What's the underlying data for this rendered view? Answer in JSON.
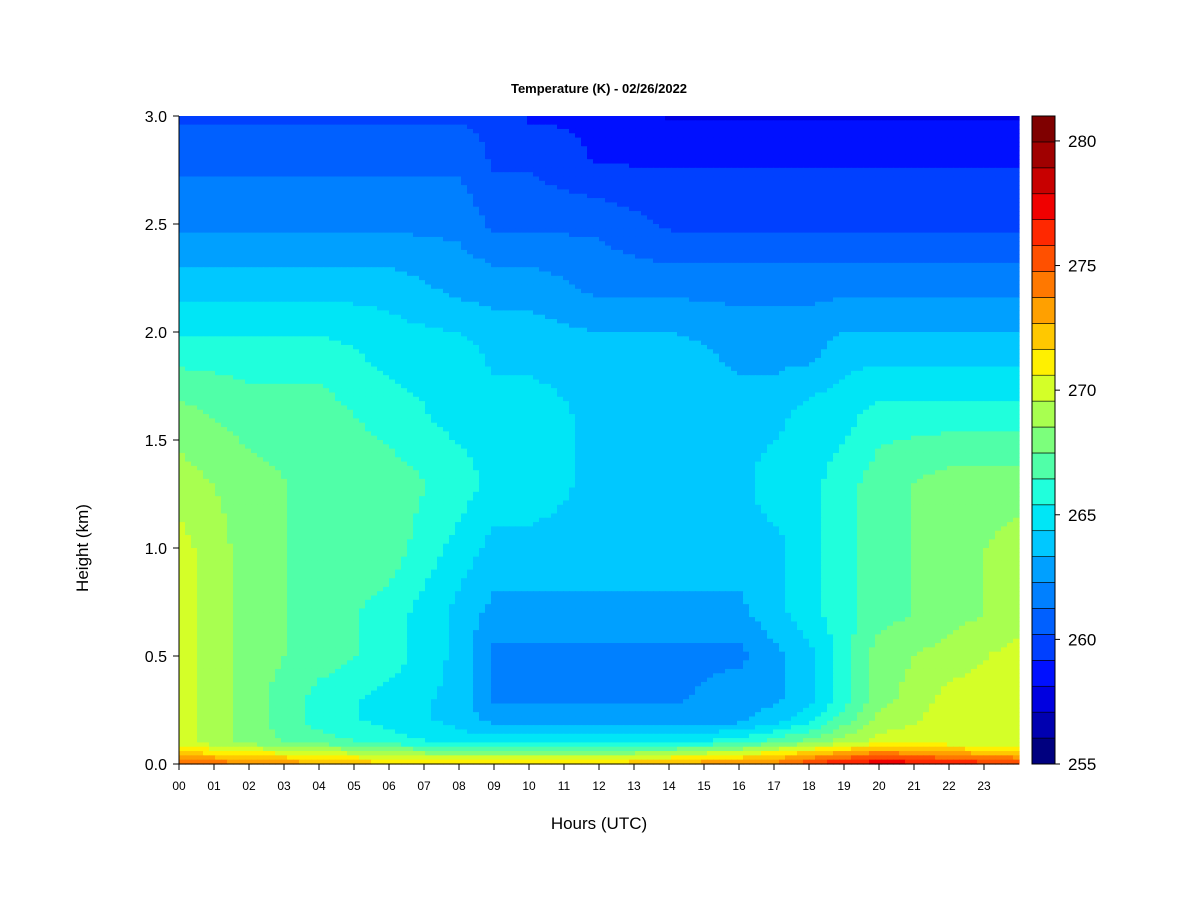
{
  "chart_data": {
    "type": "heatmap",
    "title": "Temperature (K) - 02/26/2022",
    "xlabel": "Hours (UTC)",
    "ylabel": "Height (km)",
    "xlim": [
      0,
      24
    ],
    "ylim": [
      0,
      3.0
    ],
    "x_ticks": [
      "00",
      "01",
      "02",
      "03",
      "04",
      "05",
      "06",
      "07",
      "08",
      "09",
      "10",
      "11",
      "12",
      "13",
      "14",
      "15",
      "16",
      "17",
      "18",
      "19",
      "20",
      "21",
      "22",
      "23"
    ],
    "y_ticks": [
      "0.0",
      "0.5",
      "1.0",
      "1.5",
      "2.0",
      "2.5",
      "3.0"
    ],
    "colorbar": {
      "min": 255,
      "max": 281,
      "ticks": [
        "255",
        "260",
        "265",
        "270",
        "275",
        "280"
      ],
      "colors": [
        "#00007F",
        "#0000B0",
        "#0000E0",
        "#0010FF",
        "#0040FF",
        "#0060FF",
        "#0080FF",
        "#00A0FF",
        "#00C8FF",
        "#00E6F6",
        "#20FFDC",
        "#50FFA8",
        "#7CFF7C",
        "#A8FF50",
        "#D4FF28",
        "#FFF000",
        "#FFC800",
        "#FFA000",
        "#FF7800",
        "#FF5000",
        "#FF2800",
        "#F00000",
        "#C80000",
        "#A00000",
        "#7F0000"
      ]
    },
    "x": [
      0,
      2,
      4,
      6,
      8,
      9,
      10,
      12,
      14,
      16,
      17,
      18,
      19,
      20,
      22,
      24
    ],
    "y": [
      0.0,
      0.05,
      0.1,
      0.2,
      0.3,
      0.5,
      0.7,
      1.0,
      1.3,
      1.6,
      1.9,
      2.2,
      2.5,
      2.8,
      3.0
    ],
    "z": [
      [
        275,
        274,
        273,
        272,
        272,
        272,
        272,
        272,
        273,
        274,
        274,
        276,
        277,
        278,
        277,
        276
      ],
      [
        272,
        271,
        270,
        269,
        268,
        268,
        268,
        268,
        269,
        270,
        271,
        272,
        273,
        274,
        273,
        272
      ],
      [
        270,
        268,
        267,
        266,
        265,
        265,
        265,
        265,
        265,
        266,
        267,
        268,
        269,
        270,
        270,
        270
      ],
      [
        270,
        268,
        266,
        265,
        264,
        263,
        263,
        263,
        263,
        263,
        264,
        265,
        267,
        269,
        270,
        270
      ],
      [
        270,
        268,
        266,
        265,
        264,
        262,
        262,
        262,
        262,
        263,
        263,
        264,
        266,
        268,
        270,
        270
      ],
      [
        270,
        268,
        267,
        266,
        264,
        262,
        262,
        262,
        262,
        262,
        263,
        264,
        266,
        268,
        269,
        270
      ],
      [
        270,
        268,
        267,
        266,
        264,
        263,
        263,
        263,
        263,
        263,
        264,
        265,
        266,
        267,
        268,
        269
      ],
      [
        270,
        268,
        267,
        267,
        265,
        264,
        264,
        264,
        264,
        264,
        264,
        265,
        266,
        267,
        268,
        269
      ],
      [
        269,
        268,
        267,
        267,
        266,
        265,
        265,
        264,
        264,
        264,
        265,
        265,
        266,
        267,
        268,
        268
      ],
      [
        268,
        267,
        267,
        266,
        265,
        265,
        265,
        264,
        264,
        264,
        264,
        265,
        265,
        266,
        266,
        266
      ],
      [
        266,
        266,
        266,
        265,
        265,
        264,
        264,
        264,
        264,
        263,
        263,
        263,
        264,
        264,
        264,
        264
      ],
      [
        264,
        264,
        264,
        264,
        263,
        263,
        263,
        262,
        262,
        262,
        262,
        262,
        262,
        262,
        262,
        262
      ],
      [
        262,
        262,
        262,
        262,
        262,
        261,
        261,
        261,
        260,
        260,
        260,
        260,
        260,
        260,
        260,
        260
      ],
      [
        261,
        261,
        261,
        261,
        261,
        260,
        260,
        259,
        259,
        259,
        259,
        259,
        259,
        259,
        259,
        259
      ],
      [
        260,
        260,
        260,
        260,
        260,
        260,
        259,
        259,
        258,
        258,
        258,
        258,
        258,
        258,
        258,
        258
      ]
    ]
  }
}
